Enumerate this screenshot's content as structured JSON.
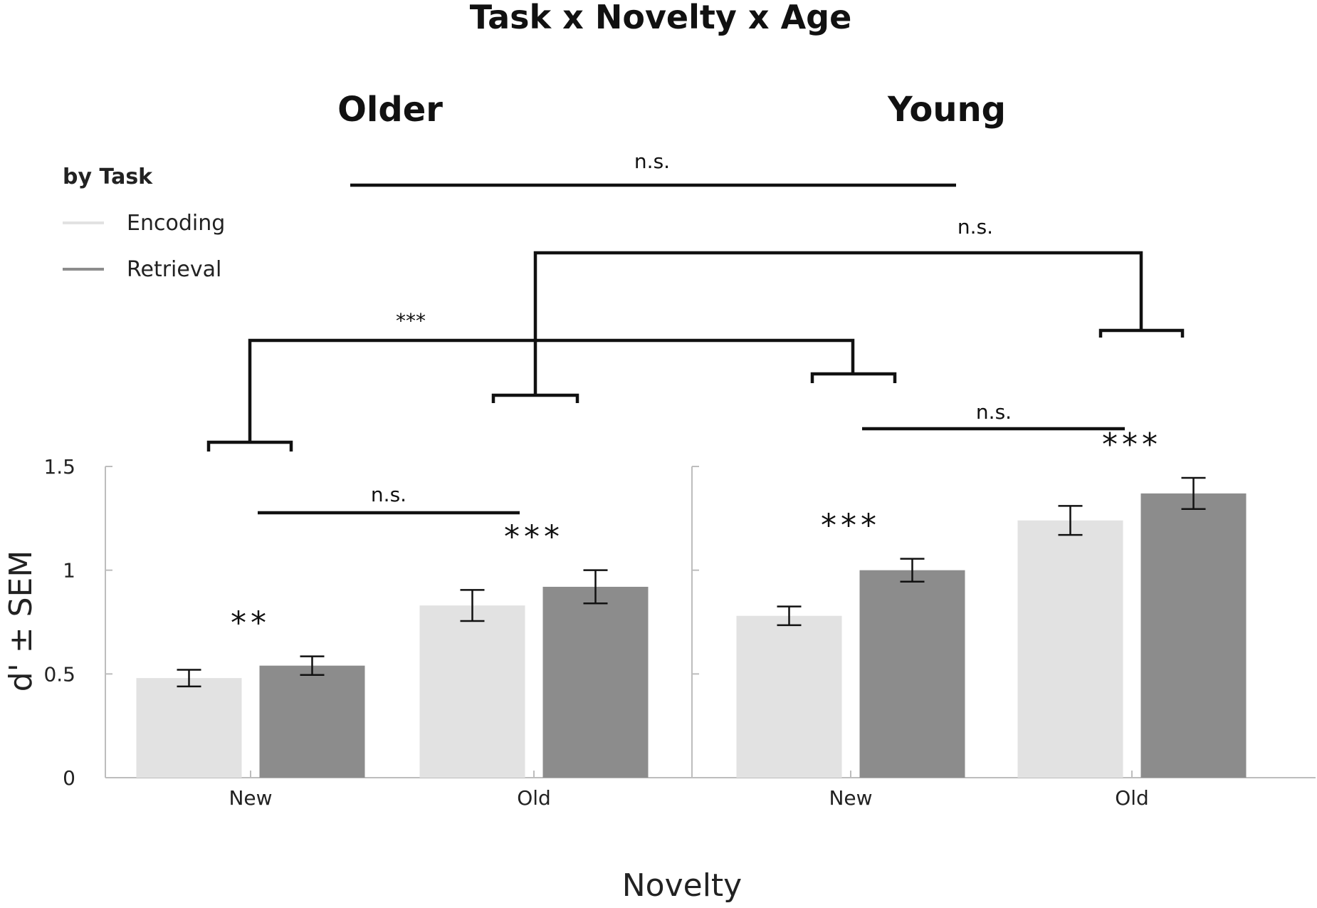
{
  "chart_data": {
    "type": "bar",
    "title": "Task x Novelty x Age",
    "xlabel": "Novelty",
    "ylabel": "d' ± SEM",
    "ylim": [
      0,
      1.5
    ],
    "yticks": [
      "0",
      "0.5",
      "1",
      "1.5"
    ],
    "categories": [
      "New",
      "Old"
    ],
    "legend": {
      "title": "by Task",
      "placement": "top-left",
      "entries": [
        "Encoding",
        "Retrieval"
      ]
    },
    "colors": {
      "Encoding": "#e2e2e2",
      "Retrieval": "#8c8c8c",
      "axis": "#bdbdbd",
      "ink": "#111111"
    },
    "panels": [
      {
        "name": "Older",
        "series": [
          {
            "name": "Encoding",
            "values": [
              0.48,
              0.83
            ],
            "sem": [
              0.04,
              0.075
            ]
          },
          {
            "name": "Retrieval",
            "values": [
              0.54,
              0.92
            ],
            "sem": [
              0.045,
              0.08
            ]
          }
        ],
        "significance": [
          "**",
          "***"
        ],
        "novelty_comparison": "n.s."
      },
      {
        "name": "Young",
        "series": [
          {
            "name": "Encoding",
            "values": [
              0.78,
              1.24
            ],
            "sem": [
              0.045,
              0.07
            ]
          },
          {
            "name": "Retrieval",
            "values": [
              1.0,
              1.37
            ],
            "sem": [
              0.055,
              0.075
            ]
          }
        ],
        "significance": [
          "***",
          "***"
        ],
        "novelty_comparison": "n.s."
      }
    ],
    "age_comparisons": [
      {
        "label": "n.s.",
        "between": "Older vs Young"
      },
      {
        "label": "***",
        "between": "Older New vs Young New"
      },
      {
        "label": "n.s.",
        "between": "Older Old vs Young Old"
      }
    ]
  }
}
